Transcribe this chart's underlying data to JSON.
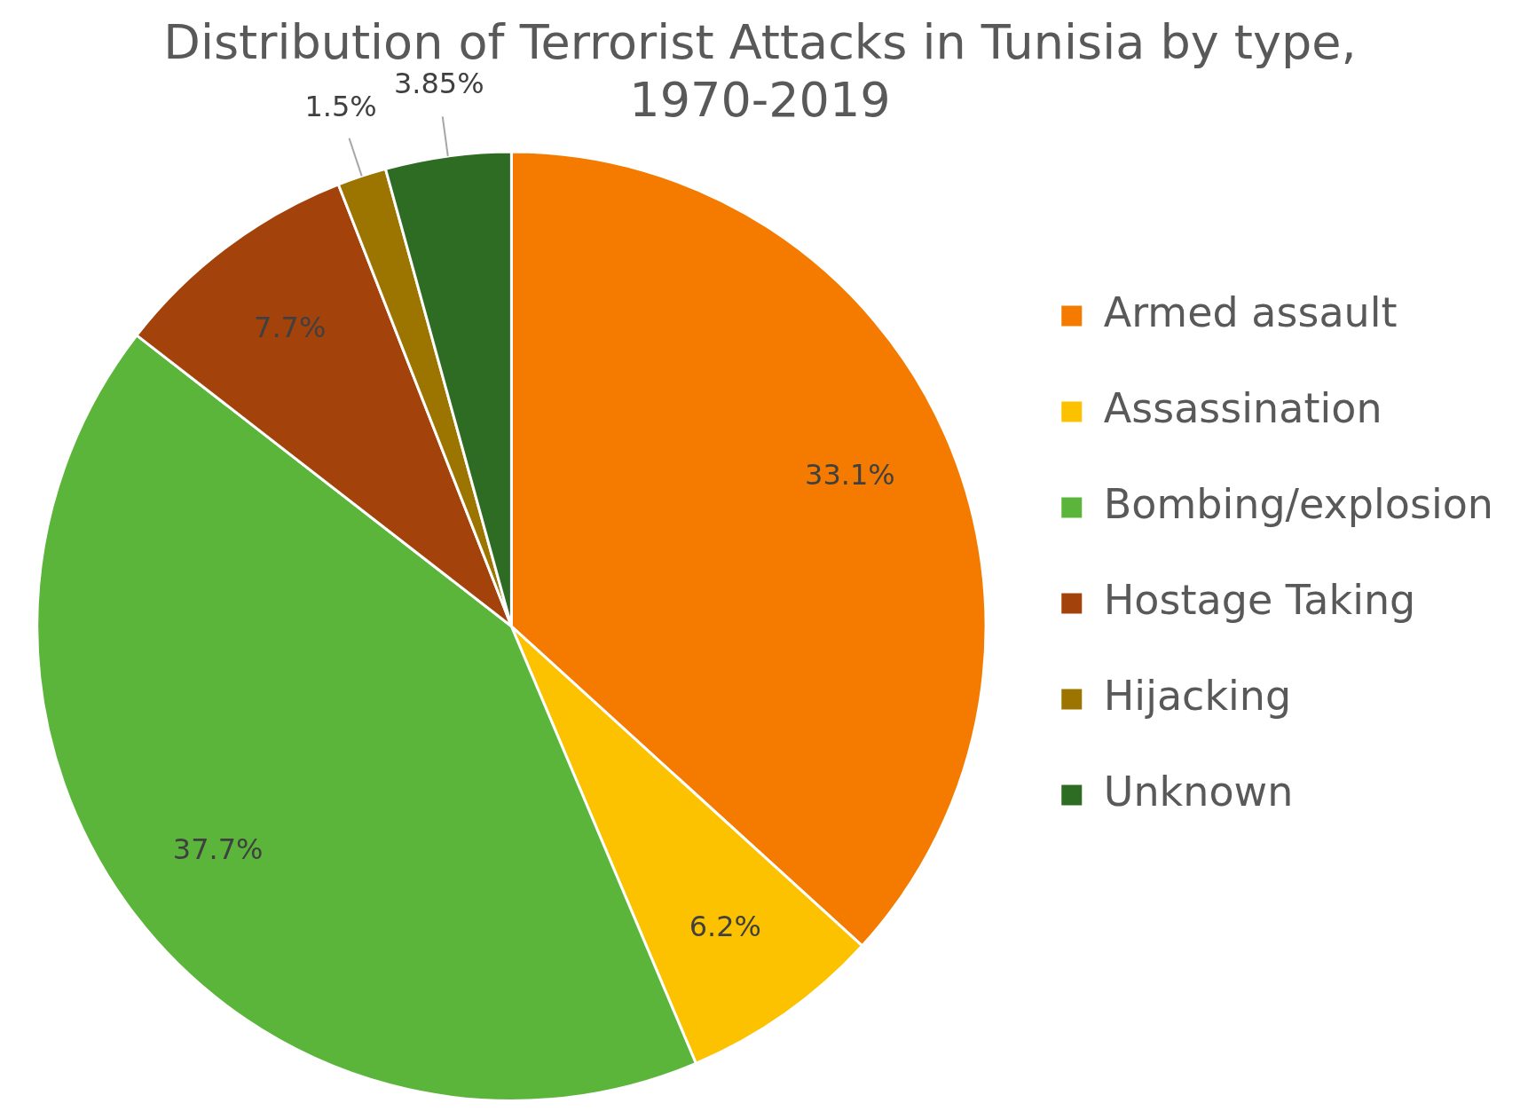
{
  "chart_data": {
    "type": "pie",
    "title": [
      "Distribution of Terrorist Attacks in Tunisia by type,",
      "1970-2019"
    ],
    "categories": [
      "Armed assault",
      "Assassination",
      "Bombing/explosion",
      "Hostage Taking",
      "Hijacking",
      "Unknown"
    ],
    "values": [
      33.1,
      6.2,
      37.7,
      7.7,
      1.5,
      3.85
    ],
    "colors": [
      "#f47b00",
      "#fcc200",
      "#5bb53b",
      "#a3420a",
      "#9c7400",
      "#2e6b23"
    ],
    "value_labels": [
      "33.1%",
      "6.2%",
      "37.7%",
      "7.7%",
      "1.5%",
      "3.85%"
    ],
    "legend": "right"
  }
}
